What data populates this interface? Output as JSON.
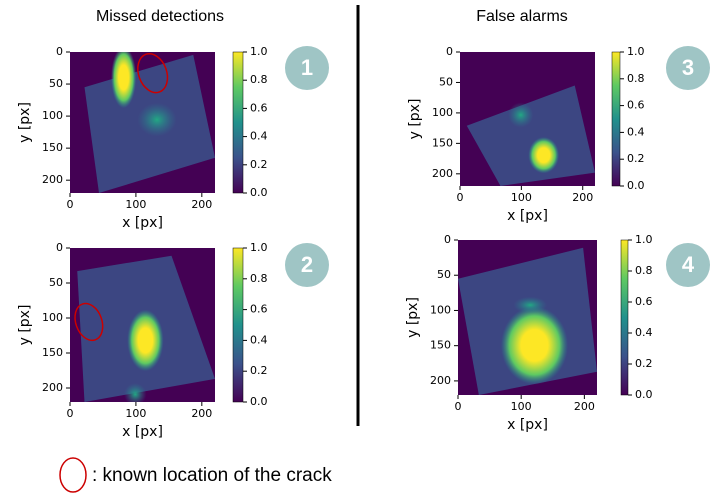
{
  "headers": [
    "Missed detections",
    "False alarms"
  ],
  "legend": ": known location of the crack",
  "chart_data": [
    {
      "type": "heatmap",
      "badge": "1",
      "xlabel": "x [px]",
      "ylabel": "y [px]",
      "xlim": [
        0,
        220
      ],
      "ylim": [
        220,
        0
      ],
      "xticks": [
        0,
        100,
        200
      ],
      "yticks": [
        0,
        50,
        100,
        150,
        200
      ],
      "clim": [
        0,
        1
      ],
      "cticks": [
        {
          "value": 0,
          "label": "0.0"
        },
        0.2,
        0.4,
        0.6,
        0.8,
        {
          "value": 1,
          "label": "1.0"
        }
      ]
    },
    {
      "type": "heatmap",
      "badge": "2",
      "xlabel": "x [px]",
      "ylabel": "y [px]",
      "xlim": [
        0,
        220
      ],
      "ylim": [
        220,
        0
      ],
      "xticks": [
        0,
        100,
        200
      ],
      "yticks": [
        0,
        50,
        100,
        150,
        200
      ],
      "clim": [
        0,
        1
      ],
      "cticks": [
        {
          "value": 0,
          "label": "0.0"
        },
        0.2,
        0.4,
        0.6,
        0.8,
        {
          "value": 1,
          "label": "1.0"
        }
      ]
    },
    {
      "type": "heatmap",
      "badge": "3",
      "xlabel": "x [px]",
      "ylabel": "y [px]",
      "xlim": [
        0,
        220
      ],
      "ylim": [
        220,
        0
      ],
      "xticks": [
        0,
        100,
        200
      ],
      "yticks": [
        0,
        50,
        100,
        150,
        200
      ],
      "clim": [
        0,
        1
      ],
      "cticks": [
        {
          "value": 0,
          "label": "0.0"
        },
        0.2,
        0.4,
        0.6,
        0.8,
        {
          "value": 1,
          "label": "1.0"
        }
      ]
    },
    {
      "type": "heatmap",
      "badge": "4",
      "xlabel": "x [px]",
      "ylabel": "y [px]",
      "xlim": [
        0,
        220
      ],
      "ylim": [
        220,
        0
      ],
      "xticks": [
        0,
        100,
        200
      ],
      "yticks": [
        0,
        50,
        100,
        150,
        200
      ],
      "clim": [
        0,
        1
      ],
      "cticks": [
        {
          "value": 0,
          "label": "0.0"
        },
        0.2,
        0.4,
        0.6,
        0.8,
        {
          "value": 1,
          "label": "1.0"
        }
      ]
    }
  ]
}
